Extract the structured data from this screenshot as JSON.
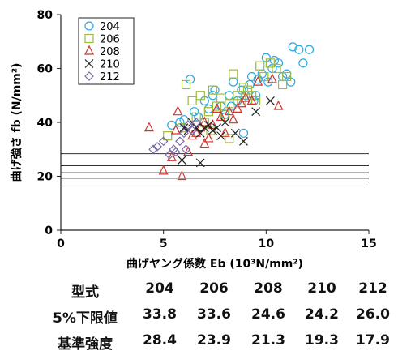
{
  "chart_data": {
    "type": "scatter",
    "xlabel": "曲げヤング係数 Eb (10³N/mm²)",
    "ylabel": "曲げ強さ fb (N/mm²)",
    "xlim": [
      0,
      15
    ],
    "ylim": [
      0,
      80
    ],
    "xticks": [
      "0",
      "5",
      "10",
      "15"
    ],
    "yticks": [
      "0",
      "20",
      "40",
      "60",
      "80"
    ],
    "grid": false,
    "legend": "top-left",
    "reference_lines_y": [
      28.4,
      23.9,
      21.3,
      19.3,
      17.9
    ],
    "series": [
      {
        "name": "204",
        "marker": "circle",
        "color": "#29a9e0",
        "points": [
          [
            5.4,
            39
          ],
          [
            5.8,
            40
          ],
          [
            6.0,
            41
          ],
          [
            6.3,
            56
          ],
          [
            6.5,
            44
          ],
          [
            6.7,
            42
          ],
          [
            7.0,
            48
          ],
          [
            7.2,
            45
          ],
          [
            7.4,
            50
          ],
          [
            7.5,
            52
          ],
          [
            7.8,
            46
          ],
          [
            8.0,
            43
          ],
          [
            8.2,
            50
          ],
          [
            8.4,
            55
          ],
          [
            8.6,
            48
          ],
          [
            8.8,
            52
          ],
          [
            8.9,
            36
          ],
          [
            9.0,
            50
          ],
          [
            9.2,
            54
          ],
          [
            9.3,
            57
          ],
          [
            9.4,
            48
          ],
          [
            9.5,
            50
          ],
          [
            9.6,
            56
          ],
          [
            9.8,
            58
          ],
          [
            10.0,
            64
          ],
          [
            10.1,
            55
          ],
          [
            10.3,
            60
          ],
          [
            10.4,
            63
          ],
          [
            10.6,
            62
          ],
          [
            10.8,
            57
          ],
          [
            11.0,
            58
          ],
          [
            11.2,
            55
          ],
          [
            11.3,
            68
          ],
          [
            11.6,
            67
          ],
          [
            11.8,
            62
          ],
          [
            12.1,
            67
          ],
          [
            8.0,
            42
          ],
          [
            8.3,
            46
          ]
        ]
      },
      {
        "name": "206",
        "marker": "square",
        "color": "#9dbb3f",
        "points": [
          [
            5.2,
            35
          ],
          [
            5.9,
            38
          ],
          [
            6.1,
            54
          ],
          [
            6.4,
            48
          ],
          [
            6.6,
            42
          ],
          [
            6.8,
            50
          ],
          [
            7.0,
            40
          ],
          [
            7.2,
            44
          ],
          [
            7.4,
            52
          ],
          [
            7.6,
            46
          ],
          [
            7.8,
            49
          ],
          [
            8.0,
            43
          ],
          [
            8.2,
            47
          ],
          [
            8.4,
            58
          ],
          [
            8.6,
            50
          ],
          [
            8.8,
            48
          ],
          [
            8.9,
            53
          ],
          [
            9.1,
            52
          ],
          [
            9.3,
            50
          ],
          [
            9.5,
            48
          ],
          [
            9.7,
            61
          ],
          [
            9.9,
            57
          ],
          [
            10.2,
            62
          ],
          [
            10.5,
            60
          ],
          [
            10.8,
            54
          ],
          [
            11.0,
            57
          ],
          [
            8.2,
            34
          ],
          [
            7.3,
            37
          ]
        ]
      },
      {
        "name": "208",
        "marker": "triangle",
        "color": "#d0362f",
        "points": [
          [
            4.3,
            38
          ],
          [
            5.0,
            22
          ],
          [
            5.4,
            27
          ],
          [
            5.6,
            37
          ],
          [
            5.7,
            44
          ],
          [
            5.9,
            20
          ],
          [
            6.2,
            29
          ],
          [
            6.4,
            35
          ],
          [
            6.6,
            36
          ],
          [
            6.8,
            38
          ],
          [
            7.0,
            40
          ],
          [
            7.2,
            34
          ],
          [
            7.4,
            39
          ],
          [
            7.6,
            45
          ],
          [
            7.8,
            42
          ],
          [
            8.0,
            36
          ],
          [
            8.2,
            44
          ],
          [
            8.4,
            41
          ],
          [
            8.6,
            45
          ],
          [
            8.8,
            47
          ],
          [
            9.0,
            49
          ],
          [
            9.3,
            48
          ],
          [
            9.6,
            55
          ],
          [
            10.3,
            56
          ],
          [
            10.6,
            46
          ],
          [
            7.0,
            32
          ]
        ]
      },
      {
        "name": "210",
        "marker": "cross",
        "color": "#222222",
        "points": [
          [
            5.9,
            26
          ],
          [
            6.0,
            38
          ],
          [
            6.2,
            37
          ],
          [
            6.4,
            40
          ],
          [
            6.6,
            38
          ],
          [
            6.8,
            36
          ],
          [
            7.0,
            38
          ],
          [
            7.2,
            39
          ],
          [
            7.4,
            37
          ],
          [
            7.6,
            38
          ],
          [
            7.8,
            35
          ],
          [
            8.0,
            40
          ],
          [
            8.5,
            36
          ],
          [
            8.9,
            33
          ],
          [
            9.5,
            44
          ],
          [
            10.2,
            48
          ],
          [
            6.8,
            25
          ]
        ]
      },
      {
        "name": "212",
        "marker": "diamond",
        "color": "#7b6aa8",
        "points": [
          [
            4.5,
            30
          ],
          [
            4.7,
            31
          ],
          [
            5.0,
            33
          ],
          [
            5.3,
            28
          ],
          [
            5.5,
            30
          ],
          [
            5.8,
            33
          ],
          [
            6.0,
            36
          ],
          [
            6.2,
            39
          ],
          [
            6.4,
            37
          ],
          [
            6.6,
            40
          ],
          [
            6.1,
            30
          ],
          [
            5.6,
            29
          ]
        ]
      }
    ]
  },
  "table": {
    "header": {
      "label": "型式",
      "cols": [
        "204",
        "206",
        "208",
        "210",
        "212"
      ]
    },
    "rows": [
      {
        "label": "5%下限値",
        "values": [
          "33.8",
          "33.6",
          "24.6",
          "24.2",
          "26.0"
        ]
      },
      {
        "label": "基準強度",
        "values": [
          "28.4",
          "23.9",
          "21.3",
          "19.3",
          "17.9"
        ]
      }
    ]
  }
}
